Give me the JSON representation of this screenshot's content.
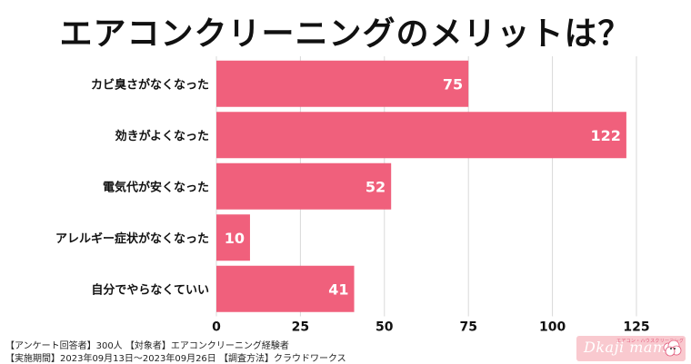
{
  "page_title": "エアコンクリーニングのメリットは？",
  "footer": {
    "line1": "【アンケート回答者】300人 【対象者】エアコンクリーニング経験者",
    "line2": "【実施期間】2023年09月13日～2023年09月26日 【調査方法】クラウドワークス"
  },
  "logo": {
    "text": "Dkaji mama",
    "tagline": "エアコン・ハウスクリーニング"
  },
  "colors": {
    "bar": "#f0607c",
    "bar_label": "#ffffff",
    "grid": "#d9d9d9",
    "text": "#111111"
  },
  "chart_data": {
    "type": "bar",
    "orientation": "horizontal",
    "title": "エアコンクリーニングのメリットは？",
    "categories": [
      "カビ臭さがなくなった",
      "効きがよくなった",
      "電気代が安くなった",
      "アレルギー症状がなくなった",
      "自分でやらなくていい"
    ],
    "values": [
      75,
      122,
      52,
      10,
      41
    ],
    "xlim": [
      0,
      125
    ],
    "xticks": [
      0,
      25,
      50,
      75,
      100,
      125
    ],
    "grid": true,
    "data_labels": true
  }
}
